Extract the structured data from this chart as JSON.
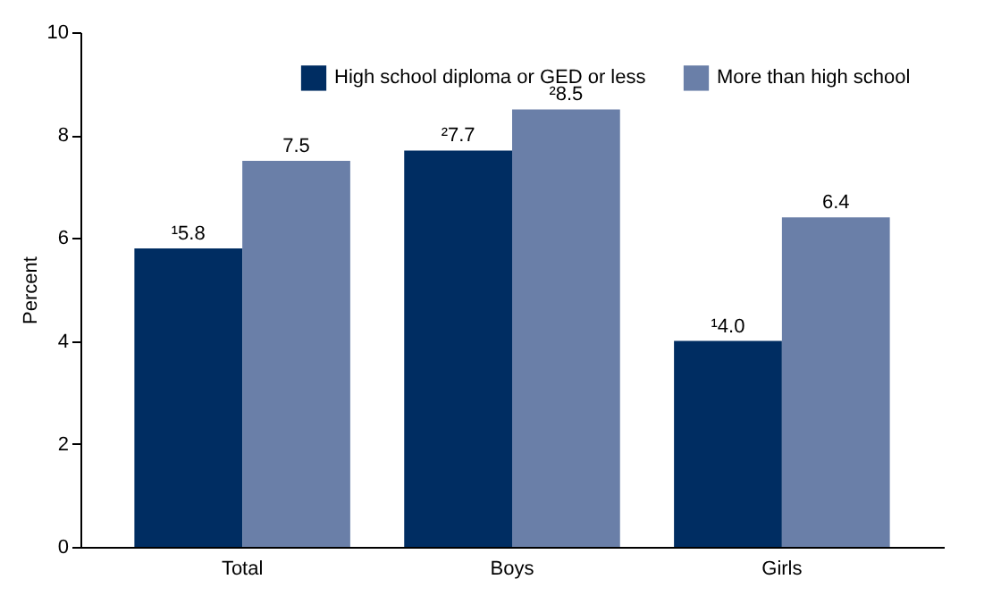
{
  "chart_data": {
    "type": "bar",
    "categories": [
      "Total",
      "Boys",
      "Girls"
    ],
    "ylabel": "Percent",
    "ylim": [
      0,
      10
    ],
    "yticks": [
      0,
      2,
      4,
      6,
      8,
      10
    ],
    "grid": false,
    "legend": "top right",
    "series": [
      {
        "name": "High school diploma or GED or less",
        "color": "#002d62",
        "values": [
          5.8,
          7.7,
          4.0
        ],
        "value_labels": [
          "¹5.8",
          "²7.7",
          "¹4.0"
        ]
      },
      {
        "name": "More than high school",
        "color": "#6a7fa8",
        "values": [
          7.5,
          8.5,
          6.4
        ],
        "value_labels": [
          "7.5",
          "²8.5",
          "6.4"
        ]
      }
    ]
  }
}
